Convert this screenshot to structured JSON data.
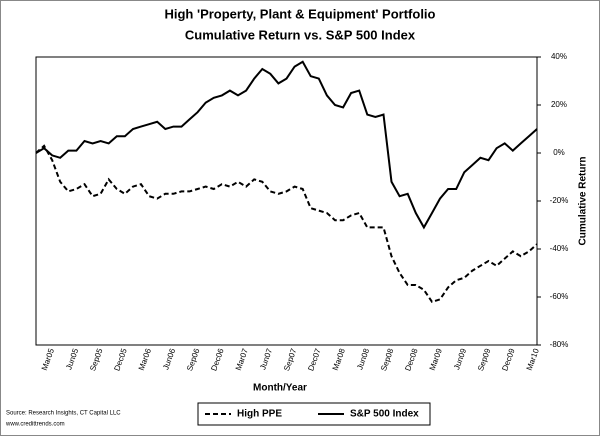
{
  "chart_data": {
    "type": "line",
    "title": "High 'Property, Plant & Equipment' Portfolio",
    "subtitle": "Cumulative Return vs. S&P 500 Index",
    "x_label": "Month/Year",
    "y_label": "Cumulative Return",
    "source": "Source: Research Insights, CT Capital LLC",
    "website": "www.credittrends.com",
    "categories": [
      null,
      null,
      "Mar05",
      null,
      null,
      "Jun05",
      null,
      null,
      "Sep05",
      null,
      null,
      "Dec05",
      null,
      null,
      "Mar06",
      null,
      null,
      "Jun06",
      null,
      null,
      "Sep06",
      null,
      null,
      "Dec06",
      null,
      null,
      "Mar07",
      null,
      null,
      "Jun07",
      null,
      null,
      "Sep07",
      null,
      null,
      "Dec07",
      null,
      null,
      "Mar08",
      null,
      null,
      "Jun08",
      null,
      null,
      "Sep08",
      null,
      null,
      "Dec08",
      null,
      null,
      "Mar09",
      null,
      null,
      "Jun09",
      null,
      null,
      "Sep09",
      null,
      null,
      "Dec09",
      null,
      null,
      "Mar10"
    ],
    "series": [
      {
        "name": "High PPE",
        "color": "#000000",
        "dash": true,
        "values": [
          0,
          3,
          -3,
          -12,
          -16,
          -15,
          -13,
          -18,
          -17,
          -11,
          -15,
          -17,
          -14,
          -13,
          -18,
          -19,
          -17,
          -17,
          -16,
          -16,
          -15,
          -14,
          -15,
          -13,
          -14,
          -12,
          -14,
          -11,
          -12,
          -16,
          -17,
          -16,
          -14,
          -15,
          -23,
          -24,
          -25,
          -28,
          -28,
          -26,
          -25,
          -31,
          -31,
          -31,
          -43,
          -50,
          -55,
          -55,
          -57,
          -62,
          -61,
          -56,
          -53,
          -52,
          -49,
          -47,
          -45,
          -47,
          -44,
          -41,
          -43,
          -41,
          -38
        ]
      },
      {
        "name": "S&P 500 Index",
        "color": "#000000",
        "dash": false,
        "values": [
          0,
          2,
          -1,
          -2,
          1,
          1,
          5,
          4,
          5,
          4,
          7,
          7,
          10,
          11,
          12,
          13,
          10,
          11,
          11,
          14,
          17,
          21,
          23,
          24,
          26,
          24,
          26,
          31,
          35,
          33,
          29,
          31,
          36,
          38,
          32,
          31,
          24,
          20,
          19,
          25,
          26,
          16,
          15,
          16,
          -12,
          -18,
          -17,
          -25,
          -31,
          -25,
          -19,
          -15,
          -15,
          -8,
          -5,
          -2,
          -3,
          2,
          4,
          1,
          4,
          7,
          10
        ]
      }
    ],
    "ylim": [
      -80,
      40
    ],
    "yticks": [
      {
        "value": 40,
        "label": "40%"
      },
      {
        "value": 20,
        "label": "20%"
      },
      {
        "value": 0,
        "label": "0%"
      },
      {
        "value": -20,
        "label": "-20%"
      },
      {
        "value": -40,
        "label": "-40%"
      },
      {
        "value": -60,
        "label": "-60%"
      },
      {
        "value": -80,
        "label": "-80%"
      }
    ],
    "grid": false,
    "legend": "bottom"
  }
}
